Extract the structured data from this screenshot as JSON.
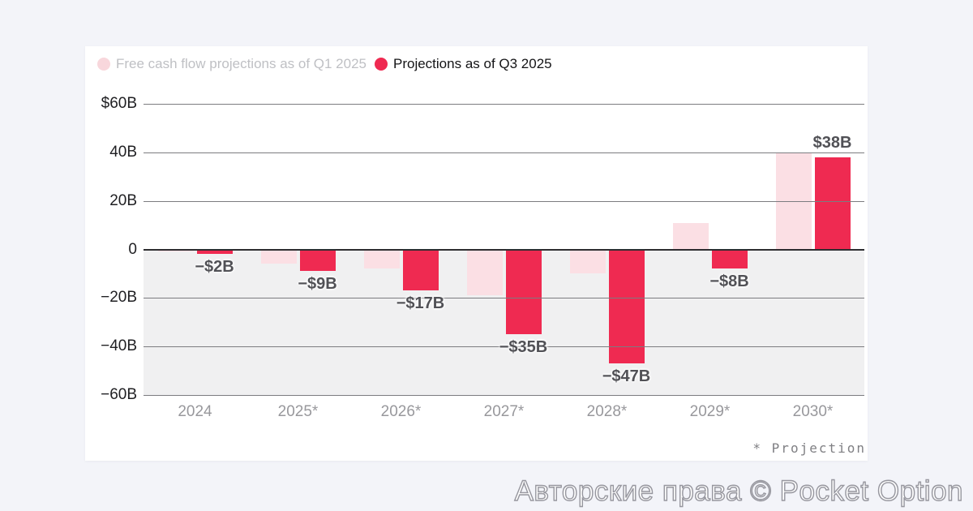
{
  "legend": [
    {
      "label": "Free cash flow projections as of Q1 2025",
      "color": "#f8d7dc"
    },
    {
      "label": "Projections as of Q3 2025",
      "color": "#ef2a51"
    }
  ],
  "footnote": "* Projection",
  "watermark": "Авторские права © Pocket Option",
  "colors": {
    "page_bg": "#f3f4f9",
    "card_bg": "#ffffff",
    "bar_red": "#ef2a51",
    "bar_pink": "#fbdfe4",
    "legend_pink_dot": "#f8d7dc",
    "negative_zone": "#f0f0f1",
    "gridline": "#7c7c80",
    "zero_line": "#2d2d30",
    "ylabel_color": "#1f1f22",
    "xlabel_color": "#98989c",
    "value_label_color": "#515156",
    "legend1_text": "#bfc0c4",
    "legend2_text": "#141416",
    "footnote_color": "#7f7f83",
    "watermark_fill": "#ffffff",
    "watermark_stroke": "#97979f"
  },
  "chart_data": {
    "type": "bar",
    "title": "",
    "categories": [
      "2024",
      "2025*",
      "2026*",
      "2027*",
      "2028*",
      "2029*",
      "2030*"
    ],
    "series": [
      {
        "name": "Free cash flow projections as of Q1 2025",
        "color": "#fbdfe4",
        "values": [
          -1,
          -6,
          -8,
          -19,
          -10,
          11,
          40
        ]
      },
      {
        "name": "Projections as of Q3 2025",
        "color": "#ef2a51",
        "values": [
          -2,
          -9,
          -17,
          -35,
          -47,
          -8,
          38
        ],
        "labels": [
          "−$2B",
          "−$9B",
          "−$17B",
          "−$35B",
          "−$47B",
          "−$8B",
          "$38B"
        ]
      }
    ],
    "ytick_values": [
      60,
      40,
      20,
      0,
      -20,
      -40,
      -60
    ],
    "ytick_labels": [
      "$60B",
      "40B",
      "20B",
      "0",
      "−20B",
      "−40B",
      "−60B"
    ],
    "ylim": [
      -60,
      60
    ],
    "xlabel": "",
    "ylabel": "",
    "grid": true,
    "legend_position": "top-left",
    "negative_region_shaded": true
  }
}
